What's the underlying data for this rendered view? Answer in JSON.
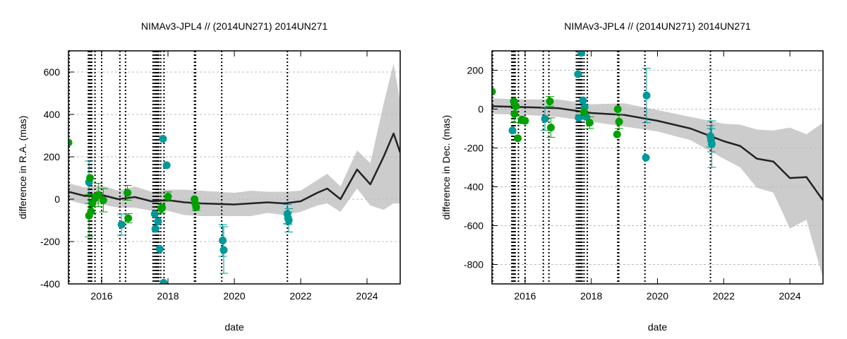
{
  "colors": {
    "green": "#00a000",
    "teal": "#009999",
    "band": "#cccccc",
    "line": "#222222"
  },
  "chart_data": [
    {
      "type": "scatter",
      "title": "NIMAv3-JPL4 // (2014UN271) 2014UN271",
      "xlabel": "date",
      "ylabel": "difference in R.A. (mas)",
      "xlim": [
        2015,
        2025
      ],
      "ylim": [
        -400,
        700
      ],
      "xticks": [
        2016,
        2018,
        2020,
        2022,
        2024
      ],
      "yticks": [
        -400,
        -200,
        0,
        200,
        400,
        600
      ],
      "grid": true,
      "fit": {
        "x": [
          2015,
          2015.5,
          2016,
          2016.5,
          2017,
          2017.5,
          2018,
          2018.5,
          2019,
          2020,
          2020.5,
          2021,
          2021.5,
          2022,
          2022.5,
          2022.8,
          2023.2,
          2023.7,
          2024.1,
          2024.5,
          2024.8,
          2025
        ],
        "y": [
          35,
          15,
          20,
          0,
          10,
          -10,
          -5,
          -15,
          -20,
          -25,
          -20,
          -15,
          -20,
          -10,
          30,
          50,
          0,
          140,
          70,
          200,
          310,
          220
        ],
        "sigma": [
          40,
          40,
          45,
          40,
          50,
          45,
          50,
          60,
          60,
          55,
          60,
          50,
          55,
          50,
          60,
          70,
          60,
          90,
          100,
          250,
          330,
          240
        ]
      },
      "points": [
        {
          "x": 2015.0,
          "y": 267,
          "s": "green"
        },
        {
          "x": 2015.62,
          "y": 80,
          "s": "teal",
          "e": 100
        },
        {
          "x": 2015.65,
          "y": 100,
          "s": "green"
        },
        {
          "x": 2015.62,
          "y": -78,
          "s": "green",
          "e": 100
        },
        {
          "x": 2015.68,
          "y": -58,
          "s": "green"
        },
        {
          "x": 2015.72,
          "y": -20,
          "s": "green",
          "e": 45
        },
        {
          "x": 2015.8,
          "y": 5,
          "s": "green"
        },
        {
          "x": 2015.9,
          "y": 20,
          "s": "green",
          "e": 55
        },
        {
          "x": 2016.05,
          "y": -5,
          "s": "green",
          "e": 55
        },
        {
          "x": 2016.6,
          "y": -120,
          "s": "teal",
          "e": 50
        },
        {
          "x": 2016.78,
          "y": 30,
          "s": "green",
          "e": 35
        },
        {
          "x": 2016.8,
          "y": -90,
          "s": "green",
          "e": 22
        },
        {
          "x": 2017.6,
          "y": -70,
          "s": "teal"
        },
        {
          "x": 2017.62,
          "y": -140,
          "s": "teal"
        },
        {
          "x": 2017.7,
          "y": -105,
          "s": "teal"
        },
        {
          "x": 2017.75,
          "y": -235,
          "s": "teal"
        },
        {
          "x": 2017.85,
          "y": 285,
          "s": "teal"
        },
        {
          "x": 2017.87,
          "y": -395,
          "s": "teal"
        },
        {
          "x": 2017.96,
          "y": 160,
          "s": "teal"
        },
        {
          "x": 2017.8,
          "y": -45,
          "s": "green",
          "e": 20
        },
        {
          "x": 2017.82,
          "y": -40,
          "s": "green"
        },
        {
          "x": 2018.0,
          "y": 12,
          "s": "green",
          "e": 22
        },
        {
          "x": 2018.8,
          "y": 0,
          "s": "green"
        },
        {
          "x": 2018.82,
          "y": -20,
          "s": "green"
        },
        {
          "x": 2018.85,
          "y": -38,
          "s": "green",
          "e": 15
        },
        {
          "x": 2019.65,
          "y": -195,
          "s": "teal",
          "e": 75
        },
        {
          "x": 2019.68,
          "y": -240,
          "s": "teal",
          "e": 110
        },
        {
          "x": 2021.6,
          "y": -70,
          "s": "teal",
          "e": 45
        },
        {
          "x": 2021.62,
          "y": -90,
          "s": "teal",
          "e": 30
        },
        {
          "x": 2021.64,
          "y": -100,
          "s": "teal",
          "e": 55
        }
      ],
      "vlines": [
        2015.02,
        2015.6,
        2015.63,
        2015.66,
        2015.7,
        2015.8,
        2016.0,
        2016.55,
        2016.72,
        2017.55,
        2017.6,
        2017.64,
        2017.68,
        2017.72,
        2017.78,
        2017.88,
        2018.8,
        2018.83,
        2019.62,
        2021.6
      ]
    },
    {
      "type": "scatter",
      "title": "NIMAv3-JPL4 // (2014UN271) 2014UN271",
      "xlabel": "date",
      "ylabel": "difference in Dec. (mas)",
      "xlim": [
        2015,
        2025
      ],
      "ylim": [
        -900,
        300
      ],
      "xticks": [
        2016,
        2018,
        2020,
        2022,
        2024
      ],
      "yticks": [
        -800,
        -600,
        -400,
        -200,
        0,
        200
      ],
      "grid": true,
      "fit": {
        "x": [
          2015,
          2016,
          2017,
          2018,
          2019,
          2020,
          2021,
          2022,
          2022.5,
          2023,
          2023.5,
          2024,
          2024.5,
          2025
        ],
        "y": [
          15,
          10,
          5,
          -20,
          -30,
          -60,
          -100,
          -165,
          -190,
          -255,
          -270,
          -355,
          -350,
          -470
        ],
        "sigma": [
          40,
          40,
          45,
          45,
          60,
          55,
          60,
          90,
          110,
          150,
          160,
          260,
          220,
          400
        ]
      },
      "points": [
        {
          "x": 2015.0,
          "y": 90,
          "s": "green"
        },
        {
          "x": 2015.62,
          "y": -110,
          "s": "teal"
        },
        {
          "x": 2015.66,
          "y": 40,
          "s": "green"
        },
        {
          "x": 2015.68,
          "y": -25,
          "s": "green",
          "e": 45
        },
        {
          "x": 2015.72,
          "y": 15,
          "s": "green"
        },
        {
          "x": 2015.78,
          "y": -150,
          "s": "green"
        },
        {
          "x": 2015.9,
          "y": -55,
          "s": "green",
          "e": 20
        },
        {
          "x": 2016.0,
          "y": -60,
          "s": "green"
        },
        {
          "x": 2016.6,
          "y": -50,
          "s": "teal",
          "e": 60
        },
        {
          "x": 2016.75,
          "y": 40,
          "s": "green",
          "e": 25
        },
        {
          "x": 2016.78,
          "y": -95,
          "s": "green",
          "e": 50
        },
        {
          "x": 2017.6,
          "y": 180,
          "s": "teal"
        },
        {
          "x": 2017.62,
          "y": -45,
          "s": "teal"
        },
        {
          "x": 2017.7,
          "y": 290,
          "s": "teal"
        },
        {
          "x": 2017.75,
          "y": 45,
          "s": "teal"
        },
        {
          "x": 2017.8,
          "y": 10,
          "s": "teal"
        },
        {
          "x": 2017.85,
          "y": -40,
          "s": "teal"
        },
        {
          "x": 2017.78,
          "y": -15,
          "s": "green"
        },
        {
          "x": 2017.95,
          "y": -70,
          "s": "green",
          "e": 30
        },
        {
          "x": 2018.8,
          "y": 0,
          "s": "green"
        },
        {
          "x": 2018.84,
          "y": -65,
          "s": "green",
          "e": 35
        },
        {
          "x": 2018.78,
          "y": -130,
          "s": "green"
        },
        {
          "x": 2019.65,
          "y": -250,
          "s": "teal"
        },
        {
          "x": 2019.67,
          "y": 70,
          "s": "teal",
          "e": 140
        },
        {
          "x": 2021.6,
          "y": -140,
          "s": "teal",
          "e": 55
        },
        {
          "x": 2021.62,
          "y": -160,
          "s": "teal",
          "e": 60
        },
        {
          "x": 2021.64,
          "y": -180,
          "s": "teal",
          "e": 120
        }
      ],
      "vlines": [
        2015.02,
        2015.6,
        2015.63,
        2015.66,
        2015.7,
        2015.8,
        2016.0,
        2016.55,
        2016.72,
        2017.55,
        2017.6,
        2017.64,
        2017.68,
        2017.72,
        2017.78,
        2017.88,
        2018.8,
        2018.83,
        2019.62,
        2021.6
      ]
    }
  ]
}
